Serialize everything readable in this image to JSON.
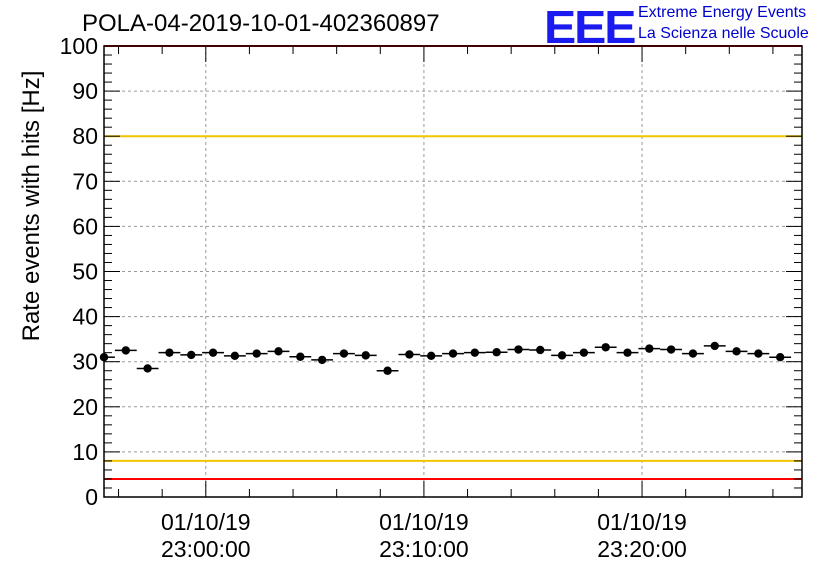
{
  "header": {
    "title": "POLA-04-2019-10-01-402360897"
  },
  "logo": {
    "mark": "EEE",
    "line1": "Extreme Energy Events",
    "line2": "La Scienza nelle Scuole",
    "color": "#1b1bf0"
  },
  "chart_data": {
    "type": "scatter",
    "title": "POLA-04-2019-10-01-402360897",
    "xlabel": "",
    "ylabel": "Rate events with hits [Hz]",
    "ylim": [
      0,
      100
    ],
    "xlim": [
      "2019-10-01 22:55:20",
      "2019-10-01 23:27:20"
    ],
    "yticks": [
      0,
      10,
      20,
      30,
      40,
      50,
      60,
      70,
      80,
      90,
      100
    ],
    "xticks": [
      {
        "t": "2019-10-01 23:00:00",
        "date": "01/10/19",
        "time": "23:00:00"
      },
      {
        "t": "2019-10-01 23:10:00",
        "date": "01/10/19",
        "time": "23:10:00"
      },
      {
        "t": "2019-10-01 23:20:00",
        "date": "01/10/19",
        "time": "23:20:00"
      }
    ],
    "grid": true,
    "bin_width_seconds": 60,
    "points": [
      {
        "t": "2019-10-01 22:55:20",
        "y": 31.0
      },
      {
        "t": "2019-10-01 22:56:20",
        "y": 32.5
      },
      {
        "t": "2019-10-01 22:57:20",
        "y": 28.5
      },
      {
        "t": "2019-10-01 22:58:20",
        "y": 32.0
      },
      {
        "t": "2019-10-01 22:59:20",
        "y": 31.5
      },
      {
        "t": "2019-10-01 23:00:20",
        "y": 32.0
      },
      {
        "t": "2019-10-01 23:01:20",
        "y": 31.3
      },
      {
        "t": "2019-10-01 23:02:20",
        "y": 31.8
      },
      {
        "t": "2019-10-01 23:03:20",
        "y": 32.3
      },
      {
        "t": "2019-10-01 23:04:20",
        "y": 31.1
      },
      {
        "t": "2019-10-01 23:05:20",
        "y": 30.4
      },
      {
        "t": "2019-10-01 23:06:20",
        "y": 31.8
      },
      {
        "t": "2019-10-01 23:07:20",
        "y": 31.4
      },
      {
        "t": "2019-10-01 23:08:20",
        "y": 28.0
      },
      {
        "t": "2019-10-01 23:09:20",
        "y": 31.6
      },
      {
        "t": "2019-10-01 23:10:20",
        "y": 31.3
      },
      {
        "t": "2019-10-01 23:11:20",
        "y": 31.8
      },
      {
        "t": "2019-10-01 23:12:20",
        "y": 32.0
      },
      {
        "t": "2019-10-01 23:13:20",
        "y": 32.1
      },
      {
        "t": "2019-10-01 23:14:20",
        "y": 32.7
      },
      {
        "t": "2019-10-01 23:15:20",
        "y": 32.6
      },
      {
        "t": "2019-10-01 23:16:20",
        "y": 31.4
      },
      {
        "t": "2019-10-01 23:17:20",
        "y": 32.0
      },
      {
        "t": "2019-10-01 23:18:20",
        "y": 33.2
      },
      {
        "t": "2019-10-01 23:19:20",
        "y": 32.0
      },
      {
        "t": "2019-10-01 23:20:20",
        "y": 32.9
      },
      {
        "t": "2019-10-01 23:21:20",
        "y": 32.7
      },
      {
        "t": "2019-10-01 23:22:20",
        "y": 31.8
      },
      {
        "t": "2019-10-01 23:23:20",
        "y": 33.5
      },
      {
        "t": "2019-10-01 23:24:20",
        "y": 32.3
      },
      {
        "t": "2019-10-01 23:25:20",
        "y": 31.8
      },
      {
        "t": "2019-10-01 23:26:20",
        "y": 31.0
      }
    ],
    "reference_lines": [
      {
        "y": 100,
        "color": "#ff0000"
      },
      {
        "y": 80,
        "color": "#f2c400"
      },
      {
        "y": 8,
        "color": "#f2c400"
      },
      {
        "y": 4,
        "color": "#ff0000"
      }
    ]
  }
}
